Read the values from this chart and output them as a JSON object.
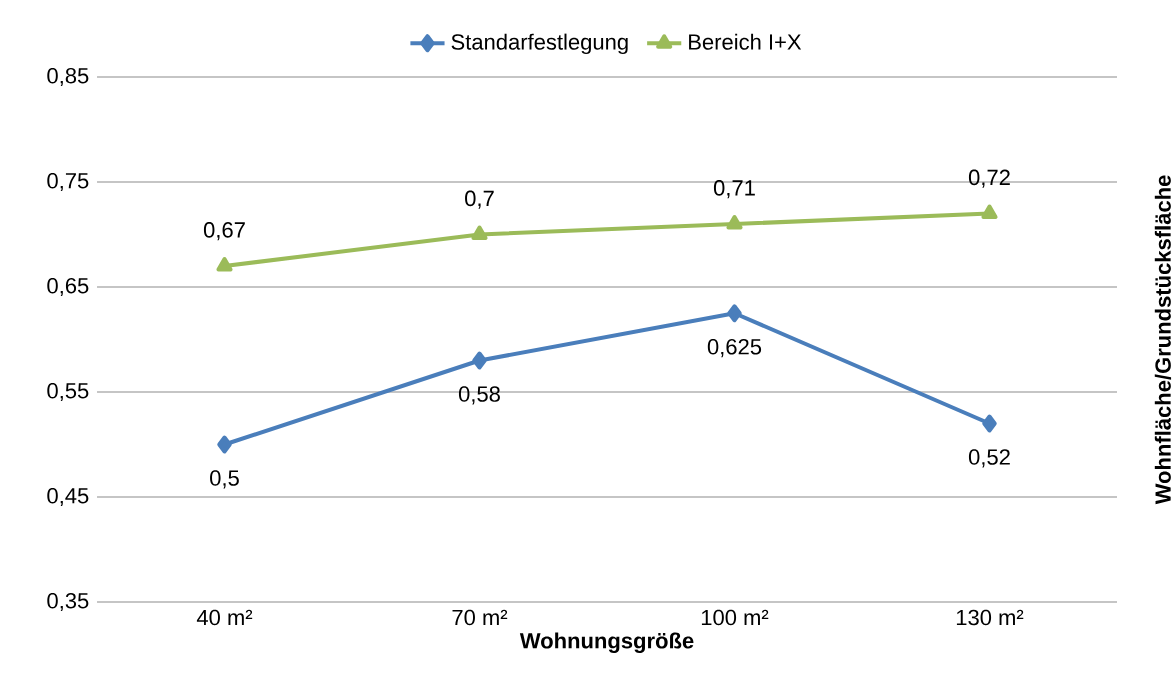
{
  "chart_data": {
    "type": "line",
    "xlabel": "Wohnungsgröße",
    "ylabel": "Wohnfläche/Grundstücksfläche",
    "categories": [
      "40 m²",
      "70 m²",
      "100 m²",
      "130 m²"
    ],
    "series": [
      {
        "name": "Standarfestlegung",
        "color": "#4a7ebb",
        "marker": "diamond",
        "values": [
          0.5,
          0.58,
          0.625,
          0.52
        ],
        "value_labels": [
          "0,5",
          "0,58",
          "0,625",
          "0,52"
        ]
      },
      {
        "name": "Bereich I+X",
        "color": "#9bbb59",
        "marker": "triangle",
        "values": [
          0.67,
          0.7,
          0.71,
          0.72
        ],
        "value_labels": [
          "0,67",
          "0,7",
          "0,71",
          "0,72"
        ]
      }
    ],
    "ylim": [
      0.35,
      0.85
    ],
    "yticks": [
      {
        "value": 0.35,
        "label": "0,35"
      },
      {
        "value": 0.45,
        "label": "0,45"
      },
      {
        "value": 0.55,
        "label": "0,55"
      },
      {
        "value": 0.65,
        "label": "0,65"
      },
      {
        "value": 0.75,
        "label": "0,75"
      },
      {
        "value": 0.85,
        "label": "0,85"
      }
    ],
    "grid": "y",
    "legend": "top",
    "line_style": "solid"
  }
}
